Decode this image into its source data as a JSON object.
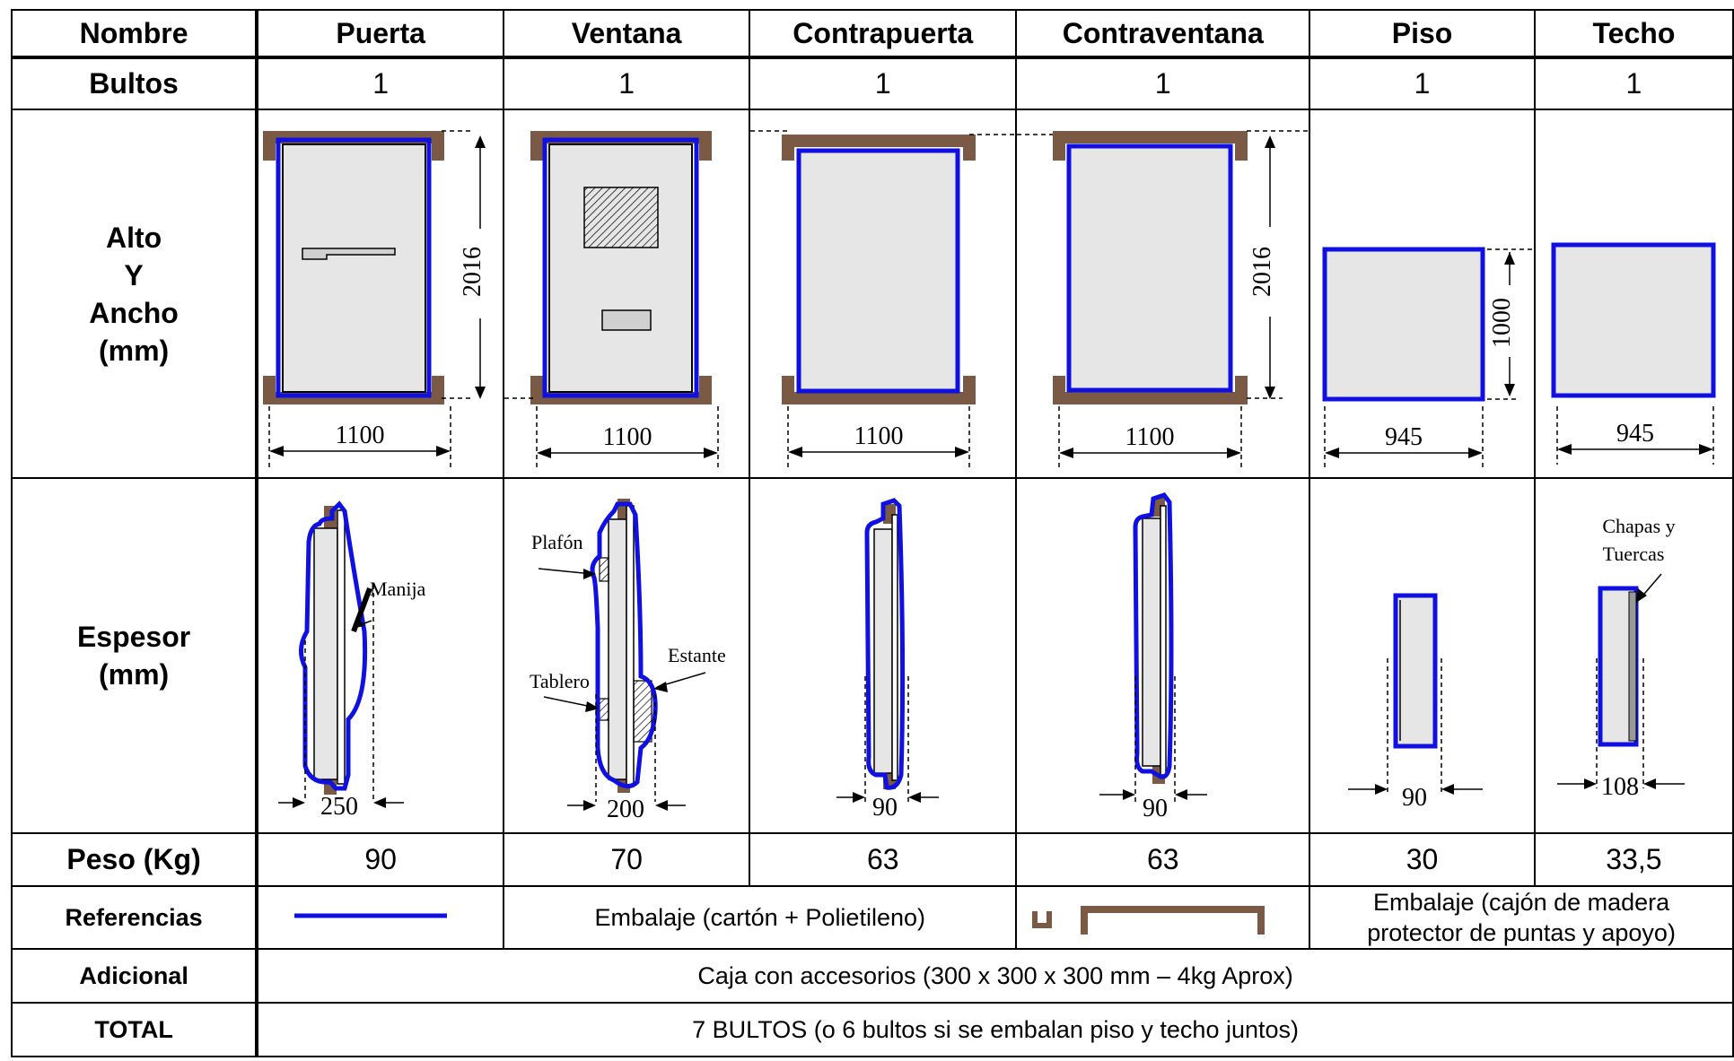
{
  "headers": {
    "row_label": "Nombre",
    "columns": [
      "Puerta",
      "Ventana",
      "Contrapuerta",
      "Contraventana",
      "Piso",
      "Techo"
    ]
  },
  "bultos": {
    "label": "Bultos",
    "values": [
      "1",
      "1",
      "1",
      "1",
      "1",
      "1"
    ]
  },
  "alto_ancho": {
    "label_line1": "Alto",
    "label_line2": "Y",
    "label_line3": "Ancho",
    "label_line4": "(mm)",
    "heights": [
      "2016",
      "2016",
      "1000"
    ],
    "widths": [
      "1100",
      "1100",
      "1100",
      "1100",
      "945",
      "945"
    ]
  },
  "espesor": {
    "label_line1": "Espesor",
    "label_line2": "(mm)",
    "values": [
      "250",
      "200",
      "90",
      "90",
      "90",
      "108"
    ],
    "annotations": {
      "manija": "Manija",
      "plafon": "Plafón",
      "estante": "Estante",
      "tablero": "Tablero",
      "chapas_line1": "Chapas y",
      "chapas_line2": "Tuercas"
    }
  },
  "peso": {
    "label": "Peso (Kg)",
    "values": [
      "90",
      "70",
      "63",
      "63",
      "30",
      "33,5"
    ]
  },
  "referencias": {
    "label": "Referencias",
    "embalaje_carton": "Embalaje (cartón + Polietileno)",
    "embalaje_madera_line1": "Embalaje (cajón de madera",
    "embalaje_madera_line2": "protector de puntas y apoyo)",
    "colors": {
      "carton_line": "#1010e0",
      "madera": "#7a5a45",
      "panel_fill": "#e6e6e6"
    }
  },
  "adicional": {
    "label": "Adicional",
    "text": "Caja con accesorios (300 x 300 x 300 mm – 4kg Aprox)"
  },
  "total": {
    "label": "TOTAL",
    "text": "7 BULTOS (o 6 bultos si se embalan piso y techo juntos)"
  }
}
